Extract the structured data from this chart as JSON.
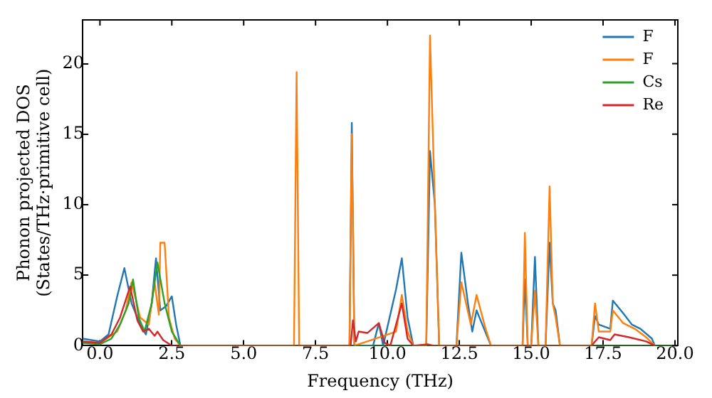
{
  "chart_data": {
    "type": "line",
    "xlabel": "Frequency (THz)",
    "ylabel": "Phonon projected DOS\n(States/THz·primitive cell)",
    "xlim": [
      -0.6,
      20.1
    ],
    "ylim": [
      0,
      23.1
    ],
    "xticks": [
      {
        "value": 0,
        "label": "0.0"
      },
      {
        "value": 2.5,
        "label": "2.5"
      },
      {
        "value": 5,
        "label": "5.0"
      },
      {
        "value": 7.5,
        "label": "7.5"
      },
      {
        "value": 10,
        "label": "10.0"
      },
      {
        "value": 12.5,
        "label": "12.5"
      },
      {
        "value": 15,
        "label": "15.0"
      },
      {
        "value": 17.5,
        "label": "17.5"
      },
      {
        "value": 20,
        "label": "20.0"
      }
    ],
    "yticks": [
      0,
      5,
      10,
      15,
      20
    ],
    "grid": false,
    "legend": "top right",
    "marker": "none",
    "line_style": "solid",
    "series": [
      {
        "name": "F",
        "color": "#1f77b4",
        "x": [
          -0.6,
          -0.3,
          0,
          0.3,
          0.6,
          0.85,
          1.1,
          1.4,
          1.6,
          1.8,
          1.95,
          2.1,
          2.3,
          2.5,
          2.65,
          2.8,
          6.75,
          6.84,
          6.93,
          8.68,
          8.76,
          8.85,
          9.5,
          9.7,
          9.85,
          10.3,
          10.5,
          10.7,
          10.9,
          11.35,
          11.48,
          11.65,
          11.8,
          12.4,
          12.57,
          12.8,
          12.95,
          13.1,
          13.3,
          13.6,
          14.7,
          14.78,
          14.88,
          15.0,
          15.13,
          15.25,
          15.5,
          15.64,
          15.75,
          15.85,
          16.0,
          17.1,
          17.22,
          17.35,
          17.75,
          17.84,
          18.2,
          18.5,
          18.8,
          19.2,
          19.3
        ],
        "values": [
          0.5,
          0.4,
          0.3,
          0.8,
          3.5,
          5.5,
          3,
          1.5,
          0.8,
          3,
          6.2,
          2.5,
          2.8,
          3.5,
          1.5,
          0,
          0,
          null,
          0,
          0,
          15.8,
          0,
          0,
          1.6,
          0,
          4,
          6.2,
          2,
          0,
          0,
          13.8,
          10,
          0,
          0,
          6.6,
          3,
          1,
          2.5,
          1.5,
          0,
          0,
          4.7,
          0,
          0,
          6.3,
          0,
          0,
          7.3,
          3,
          2.5,
          0,
          0,
          2.1,
          1.5,
          1.2,
          3.2,
          2.3,
          1.5,
          1.2,
          0.5,
          0
        ]
      },
      {
        "name": "F",
        "color": "#ff7f0e",
        "x": [
          -0.6,
          0,
          0.6,
          0.9,
          1.1,
          1.4,
          1.7,
          1.9,
          2.05,
          2.1,
          2.25,
          2.4,
          2.6,
          2.8,
          6.75,
          6.84,
          6.93,
          8.68,
          8.76,
          8.85,
          10.3,
          10.5,
          10.7,
          10.9,
          11.35,
          11.48,
          11.65,
          11.8,
          12.4,
          12.57,
          12.9,
          13.1,
          13.4,
          13.6,
          14.7,
          14.78,
          14.88,
          15.0,
          15.13,
          15.25,
          15.5,
          15.64,
          15.75,
          15.85,
          16.0,
          17.1,
          17.22,
          17.35,
          17.75,
          17.84,
          18.2,
          18.6,
          19.0,
          19.3
        ],
        "values": [
          0.3,
          0.2,
          1,
          2.5,
          4.5,
          2,
          1.5,
          4.5,
          2.2,
          7.3,
          7.3,
          2,
          0.5,
          0,
          0,
          19.4,
          0,
          0,
          15.0,
          0,
          1,
          3.6,
          1,
          0,
          0,
          22,
          10,
          0,
          0,
          4.5,
          1.5,
          3.6,
          1.3,
          0,
          0,
          8,
          0,
          0,
          3.9,
          0,
          0,
          11.3,
          3,
          2,
          0,
          0,
          3,
          1,
          1,
          2.5,
          1.6,
          1.2,
          0.6,
          0
        ]
      },
      {
        "name": "Cs",
        "color": "#2ca02c",
        "x": [
          -0.6,
          0,
          0.4,
          0.7,
          1.0,
          1.15,
          1.35,
          1.55,
          1.8,
          2.0,
          2.25,
          2.5,
          2.8,
          20.1
        ],
        "values": [
          0.2,
          0.1,
          0.5,
          1.5,
          3,
          4.7,
          2,
          1,
          3,
          5.9,
          3,
          1,
          0,
          0
        ]
      },
      {
        "name": "Re",
        "color": "#d62728",
        "x": [
          -0.6,
          0,
          0.4,
          0.7,
          1.05,
          1.3,
          1.5,
          1.7,
          1.9,
          2.0,
          2.2,
          2.5,
          8.72,
          8.8,
          8.9,
          9.0,
          9.3,
          9.7,
          9.9,
          10.1,
          10.3,
          10.5,
          10.7,
          10.9,
          11.4,
          11.6,
          17.1,
          17.22,
          17.35,
          17.75,
          17.9,
          18.4,
          19.0,
          19.3
        ],
        "values": [
          0.3,
          0.2,
          0.8,
          2,
          4.2,
          1.8,
          1,
          1.2,
          0.7,
          1,
          0.4,
          0,
          0,
          1.8,
          0.3,
          1.0,
          0.9,
          1.6,
          0.2,
          0,
          1.5,
          3.0,
          0.5,
          0,
          0.1,
          0,
          0,
          0.3,
          0.6,
          0.4,
          0.8,
          0.6,
          0.3,
          0
        ]
      }
    ]
  }
}
